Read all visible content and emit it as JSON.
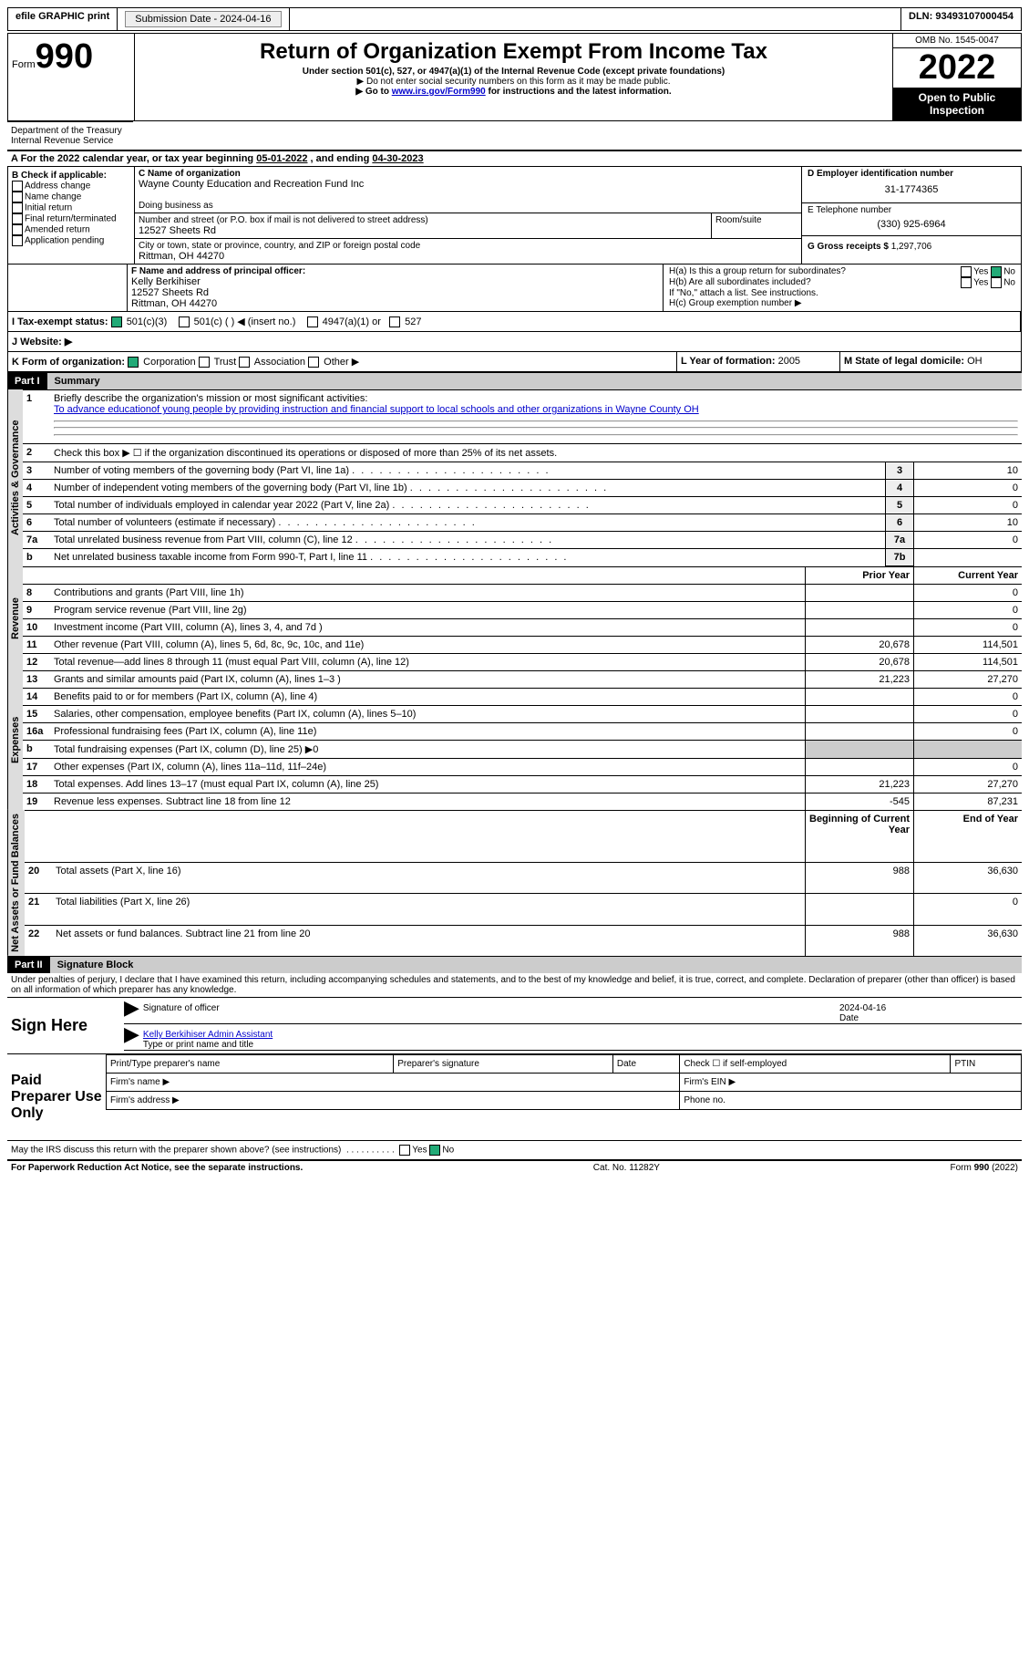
{
  "topbar": {
    "efile": "efile GRAPHIC print",
    "submission": "Submission Date - 2024-04-16",
    "dln": "DLN: 93493107000454"
  },
  "header": {
    "form_prefix": "Form",
    "form_no": "990",
    "title": "Return of Organization Exempt From Income Tax",
    "subtitle": "Under section 501(c), 527, or 4947(a)(1) of the Internal Revenue Code (except private foundations)",
    "note1": "▶ Do not enter social security numbers on this form as it may be made public.",
    "note2_pre": "▶ Go to ",
    "note2_link": "www.irs.gov/Form990",
    "note2_post": " for instructions and the latest information.",
    "omb": "OMB No. 1545-0047",
    "year": "2022",
    "inspect": "Open to Public Inspection",
    "dept": "Department of the Treasury",
    "irs": "Internal Revenue Service"
  },
  "section_a": {
    "text_pre": "A For the 2022 calendar year, or tax year beginning ",
    "begin": "05-01-2022",
    "mid": " , and ending ",
    "end": "04-30-2023"
  },
  "box_b": {
    "title": "B Check if applicable:",
    "items": [
      "Address change",
      "Name change",
      "Initial return",
      "Final return/terminated",
      "Amended return",
      "Application pending"
    ]
  },
  "box_c": {
    "label_name": "C Name of organization",
    "name": "Wayne County Education and Recreation Fund Inc",
    "dba": "Doing business as",
    "street_label": "Number and street (or P.O. box if mail is not delivered to street address)",
    "street": "12527 Sheets Rd",
    "room": "Room/suite",
    "city_label": "City or town, state or province, country, and ZIP or foreign postal code",
    "city": "Rittman, OH  44270"
  },
  "box_d": {
    "label": "D Employer identification number",
    "ein": "31-1774365"
  },
  "box_e": {
    "label": "E Telephone number",
    "phone": "(330) 925-6964"
  },
  "box_g": {
    "label": "G Gross receipts $",
    "amt": "1,297,706"
  },
  "box_f": {
    "label": "F Name and address of principal officer:",
    "name": "Kelly Berkihiser",
    "street": "12527 Sheets Rd",
    "city": "Rittman, OH  44270"
  },
  "box_h": {
    "ha": "H(a)  Is this a group return for subordinates?",
    "hb": "H(b)  Are all subordinates included?",
    "hnote": "If \"No,\" attach a list. See instructions.",
    "hc": "H(c)  Group exemption number ▶",
    "yes": "Yes",
    "no": "No"
  },
  "box_i": {
    "label": "I Tax-exempt status:",
    "o1": "501(c)(3)",
    "o2": "501(c) (  ) ◀ (insert no.)",
    "o3": "4947(a)(1) or",
    "o4": "527"
  },
  "box_j": {
    "label": "J   Website: ▶"
  },
  "box_k": {
    "label": "K Form of organization:",
    "o1": "Corporation",
    "o2": "Trust",
    "o3": "Association",
    "o4": "Other ▶"
  },
  "box_l": {
    "label": "L Year of formation:",
    "val": "2005"
  },
  "box_m": {
    "label": "M State of legal domicile:",
    "val": "OH"
  },
  "parts": {
    "p1": "Part I",
    "p1t": "Summary",
    "p2": "Part II",
    "p2t": "Signature Block"
  },
  "vlabels": {
    "act": "Activities & Governance",
    "rev": "Revenue",
    "exp": "Expenses",
    "net": "Net Assets or\nFund Balances"
  },
  "summary": {
    "l1": "Briefly describe the organization's mission or most significant activities:",
    "l1v": "To advance educationof young people by providing instruction and financial support to local schools and other organizations in Wayne County OH",
    "l2": "Check this box ▶ ☐ if the organization discontinued its operations or disposed of more than 25% of its net assets.",
    "rows_a": [
      {
        "n": "3",
        "t": "Number of voting members of the governing body (Part VI, line 1a)",
        "b": "3",
        "v": "10"
      },
      {
        "n": "4",
        "t": "Number of independent voting members of the governing body (Part VI, line 1b)",
        "b": "4",
        "v": "0"
      },
      {
        "n": "5",
        "t": "Total number of individuals employed in calendar year 2022 (Part V, line 2a)",
        "b": "5",
        "v": "0"
      },
      {
        "n": "6",
        "t": "Total number of volunteers (estimate if necessary)",
        "b": "6",
        "v": "10"
      },
      {
        "n": "7a",
        "t": "Total unrelated business revenue from Part VIII, column (C), line 12",
        "b": "7a",
        "v": "0"
      },
      {
        "n": "b",
        "t": "Net unrelated business taxable income from Form 990-T, Part I, line 11",
        "b": "7b",
        "v": ""
      }
    ],
    "hdr_prior": "Prior Year",
    "hdr_curr": "Current Year",
    "rows_r": [
      {
        "n": "8",
        "t": "Contributions and grants (Part VIII, line 1h)",
        "p": "",
        "c": "0"
      },
      {
        "n": "9",
        "t": "Program service revenue (Part VIII, line 2g)",
        "p": "",
        "c": "0"
      },
      {
        "n": "10",
        "t": "Investment income (Part VIII, column (A), lines 3, 4, and 7d )",
        "p": "",
        "c": "0"
      },
      {
        "n": "11",
        "t": "Other revenue (Part VIII, column (A), lines 5, 6d, 8c, 9c, 10c, and 11e)",
        "p": "20,678",
        "c": "114,501"
      },
      {
        "n": "12",
        "t": "Total revenue—add lines 8 through 11 (must equal Part VIII, column (A), line 12)",
        "p": "20,678",
        "c": "114,501"
      }
    ],
    "rows_e": [
      {
        "n": "13",
        "t": "Grants and similar amounts paid (Part IX, column (A), lines 1–3 )",
        "p": "21,223",
        "c": "27,270"
      },
      {
        "n": "14",
        "t": "Benefits paid to or for members (Part IX, column (A), line 4)",
        "p": "",
        "c": "0"
      },
      {
        "n": "15",
        "t": "Salaries, other compensation, employee benefits (Part IX, column (A), lines 5–10)",
        "p": "",
        "c": "0"
      },
      {
        "n": "16a",
        "t": "Professional fundraising fees (Part IX, column (A), line 11e)",
        "p": "",
        "c": "0"
      },
      {
        "n": "b",
        "t": "Total fundraising expenses (Part IX, column (D), line 25) ▶0",
        "p": "grey",
        "c": "grey"
      },
      {
        "n": "17",
        "t": "Other expenses (Part IX, column (A), lines 11a–11d, 11f–24e)",
        "p": "",
        "c": "0"
      },
      {
        "n": "18",
        "t": "Total expenses. Add lines 13–17 (must equal Part IX, column (A), line 25)",
        "p": "21,223",
        "c": "27,270"
      },
      {
        "n": "19",
        "t": "Revenue less expenses. Subtract line 18 from line 12",
        "p": "-545",
        "c": "87,231"
      }
    ],
    "hdr_beg": "Beginning of Current Year",
    "hdr_end": "End of Year",
    "rows_n": [
      {
        "n": "20",
        "t": "Total assets (Part X, line 16)",
        "p": "988",
        "c": "36,630"
      },
      {
        "n": "21",
        "t": "Total liabilities (Part X, line 26)",
        "p": "",
        "c": "0"
      },
      {
        "n": "22",
        "t": "Net assets or fund balances. Subtract line 21 from line 20",
        "p": "988",
        "c": "36,630"
      }
    ]
  },
  "sig": {
    "decl": "Under penalties of perjury, I declare that I have examined this return, including accompanying schedules and statements, and to the best of my knowledge and belief, it is true, correct, and complete. Declaration of preparer (other than officer) is based on all information of which preparer has any knowledge.",
    "sign_here": "Sign Here",
    "sig_officer": "Signature of officer",
    "date": "Date",
    "date_v": "2024-04-16",
    "name_title": "Kelly Berkihiser  Admin Assistant",
    "type_name": "Type or print name and title",
    "paid": "Paid Preparer Use Only",
    "pt_name": "Print/Type preparer's name",
    "pt_sig": "Preparer's signature",
    "pt_date": "Date",
    "pt_check": "Check ☐ if self-employed",
    "ptin": "PTIN",
    "firm_name": "Firm's name    ▶",
    "firm_ein": "Firm's EIN ▶",
    "firm_addr": "Firm's address ▶",
    "phone": "Phone no.",
    "may": "May the IRS discuss this return with the preparer shown above? (see instructions)"
  },
  "footer": {
    "pra": "For Paperwork Reduction Act Notice, see the separate instructions.",
    "cat": "Cat. No. 11282Y",
    "form": "Form 990 (2022)"
  }
}
